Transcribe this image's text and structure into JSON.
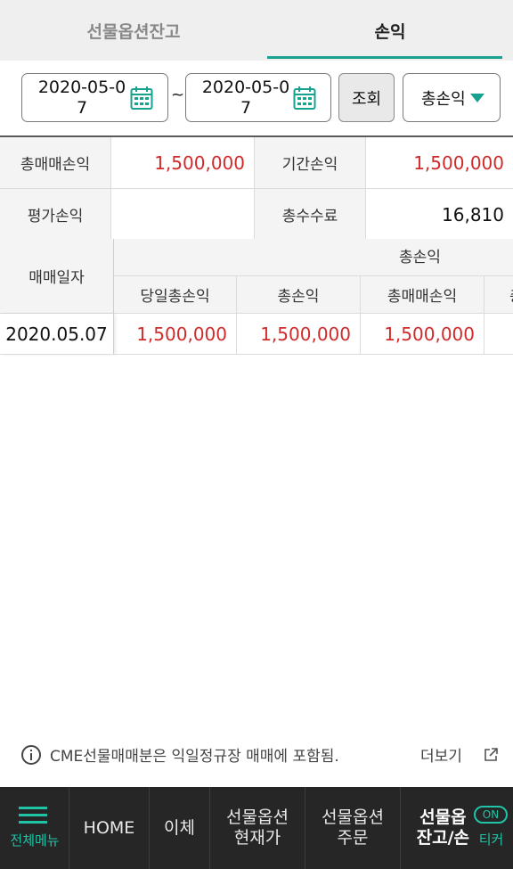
{
  "tabs": [
    {
      "label": "선물옵션잔고",
      "active": false
    },
    {
      "label": "손익",
      "active": true
    }
  ],
  "query": {
    "start_date": "2020-05-07",
    "start_date_line1": "2020-05-0",
    "start_date_line2": "7",
    "tilde": "~",
    "end_date": "2020-05-07",
    "end_date_line1": "2020-05-0",
    "end_date_line2": "7",
    "search_label": "조회",
    "type_selected": "총손익"
  },
  "summary": {
    "total_trade_pnl_label": "총매매손익",
    "total_trade_pnl_value": "1,500,000",
    "period_pnl_label": "기간손익",
    "period_pnl_value": "1,500,000",
    "eval_pnl_label": "평가손익",
    "eval_pnl_value": "",
    "total_fee_label": "총수수료",
    "total_fee_value": "16,810"
  },
  "detail": {
    "date_header": "매매일자",
    "group_header": "총손익",
    "columns": [
      "당일총손익",
      "총손익",
      "총매매손익",
      "총"
    ],
    "rows": [
      {
        "date": "2020.05.07",
        "values": [
          "1,500,000",
          "1,500,000",
          "1,500,000",
          ""
        ]
      }
    ]
  },
  "notice": {
    "text": "CME선물매매분은 익일정규장 매매에 포함됨.",
    "more": "더보기"
  },
  "bottom_nav": {
    "menu_label": "전체메뉴",
    "items": [
      {
        "line1": "HOME",
        "line2": ""
      },
      {
        "line1": "이체",
        "line2": ""
      },
      {
        "line1": "선물옵션",
        "line2": "현재가"
      },
      {
        "line1": "선물옵션",
        "line2": "주문"
      },
      {
        "line1": "선물옵",
        "line2": "잔고/손"
      }
    ],
    "ticker_toggle": "ON",
    "ticker_label": "티커"
  },
  "colors": {
    "accent": "#16a28f",
    "profit_red": "#d12a2a",
    "nav_bg": "#262626"
  }
}
